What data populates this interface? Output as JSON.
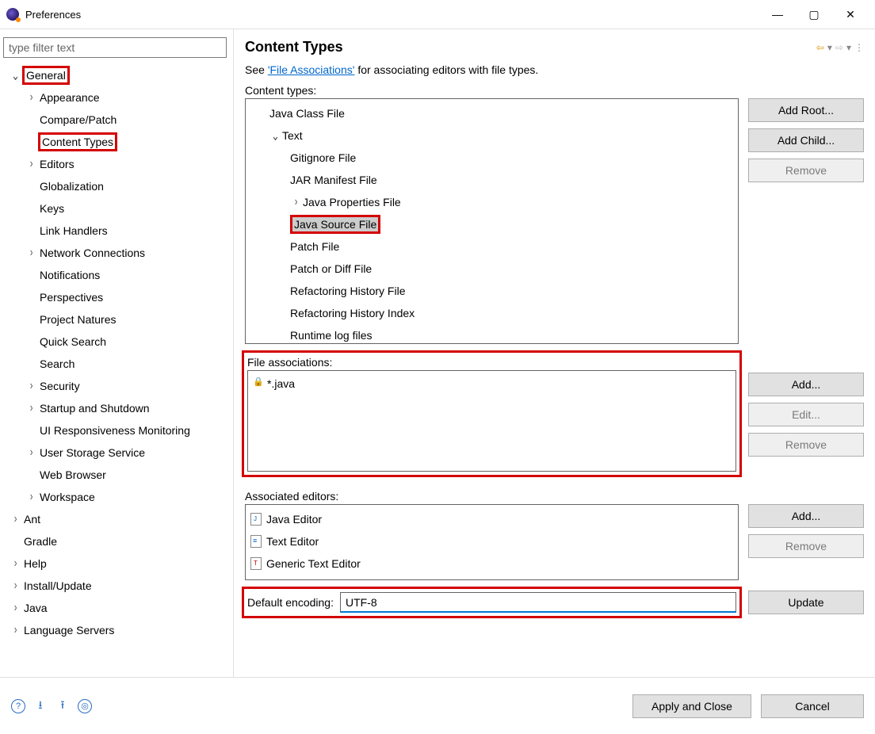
{
  "window": {
    "title": "Preferences"
  },
  "sidebar": {
    "filter_placeholder": "type filter text",
    "items": [
      {
        "label": "General",
        "depth": 1,
        "expanded": true,
        "twisty": "down",
        "highlight": true
      },
      {
        "label": "Appearance",
        "depth": 2,
        "twisty": "right"
      },
      {
        "label": "Compare/Patch",
        "depth": 2,
        "twisty": "blank"
      },
      {
        "label": "Content Types",
        "depth": 2,
        "twisty": "blank",
        "highlight": true
      },
      {
        "label": "Editors",
        "depth": 2,
        "twisty": "right"
      },
      {
        "label": "Globalization",
        "depth": 2,
        "twisty": "blank"
      },
      {
        "label": "Keys",
        "depth": 2,
        "twisty": "blank"
      },
      {
        "label": "Link Handlers",
        "depth": 2,
        "twisty": "blank"
      },
      {
        "label": "Network Connections",
        "depth": 2,
        "twisty": "right"
      },
      {
        "label": "Notifications",
        "depth": 2,
        "twisty": "blank"
      },
      {
        "label": "Perspectives",
        "depth": 2,
        "twisty": "blank"
      },
      {
        "label": "Project Natures",
        "depth": 2,
        "twisty": "blank"
      },
      {
        "label": "Quick Search",
        "depth": 2,
        "twisty": "blank"
      },
      {
        "label": "Search",
        "depth": 2,
        "twisty": "blank"
      },
      {
        "label": "Security",
        "depth": 2,
        "twisty": "right"
      },
      {
        "label": "Startup and Shutdown",
        "depth": 2,
        "twisty": "right"
      },
      {
        "label": "UI Responsiveness Monitoring",
        "depth": 2,
        "twisty": "blank"
      },
      {
        "label": "User Storage Service",
        "depth": 2,
        "twisty": "right"
      },
      {
        "label": "Web Browser",
        "depth": 2,
        "twisty": "blank"
      },
      {
        "label": "Workspace",
        "depth": 2,
        "twisty": "right"
      },
      {
        "label": "Ant",
        "depth": 1,
        "twisty": "right"
      },
      {
        "label": "Gradle",
        "depth": 1,
        "twisty": "blank"
      },
      {
        "label": "Help",
        "depth": 1,
        "twisty": "right"
      },
      {
        "label": "Install/Update",
        "depth": 1,
        "twisty": "right"
      },
      {
        "label": "Java",
        "depth": 1,
        "twisty": "right"
      },
      {
        "label": "Language Servers",
        "depth": 1,
        "twisty": "right"
      }
    ]
  },
  "panel": {
    "title": "Content Types",
    "intro_prefix": "See ",
    "intro_link": "'File Associations'",
    "intro_suffix": " for associating editors with file types.",
    "content_types_label": "Content types:",
    "content_types": [
      {
        "label": "Java Class File",
        "depth": 1,
        "twisty": "blank"
      },
      {
        "label": "Text",
        "depth": 1,
        "twisty": "down"
      },
      {
        "label": "Gitignore File",
        "depth": 2,
        "twisty": "blank"
      },
      {
        "label": "JAR Manifest File",
        "depth": 2,
        "twisty": "blank"
      },
      {
        "label": "Java Properties File",
        "depth": 2,
        "twisty": "right"
      },
      {
        "label": "Java Source File",
        "depth": 2,
        "twisty": "blank",
        "selected": true,
        "highlight": true
      },
      {
        "label": "Patch File",
        "depth": 2,
        "twisty": "blank"
      },
      {
        "label": "Patch or Diff File",
        "depth": 2,
        "twisty": "blank"
      },
      {
        "label": "Refactoring History File",
        "depth": 2,
        "twisty": "blank"
      },
      {
        "label": "Refactoring History Index",
        "depth": 2,
        "twisty": "blank"
      },
      {
        "label": "Runtime log files",
        "depth": 2,
        "twisty": "blank"
      }
    ],
    "ct_buttons": {
      "add_root": "Add Root...",
      "add_child": "Add Child...",
      "remove": "Remove"
    },
    "file_assoc_label": "File associations:",
    "file_associations": [
      {
        "label": "*.java",
        "locked": true
      }
    ],
    "fa_buttons": {
      "add": "Add...",
      "edit": "Edit...",
      "remove": "Remove"
    },
    "editors_label": "Associated editors:",
    "editors": [
      {
        "label": "Java Editor",
        "icon": "java"
      },
      {
        "label": "Text Editor",
        "icon": "txt"
      },
      {
        "label": "Generic Text Editor",
        "icon": "gen"
      }
    ],
    "ed_buttons": {
      "add": "Add...",
      "remove": "Remove"
    },
    "encoding_label": "Default encoding:",
    "encoding_value": "UTF-8",
    "update_btn": "Update"
  },
  "footer": {
    "apply": "Apply and Close",
    "cancel": "Cancel"
  },
  "colors": {
    "highlight_border": "#d40000",
    "selected_bg": "#cccccc",
    "link": "#0066cc",
    "focus_border": "#0078d4"
  }
}
